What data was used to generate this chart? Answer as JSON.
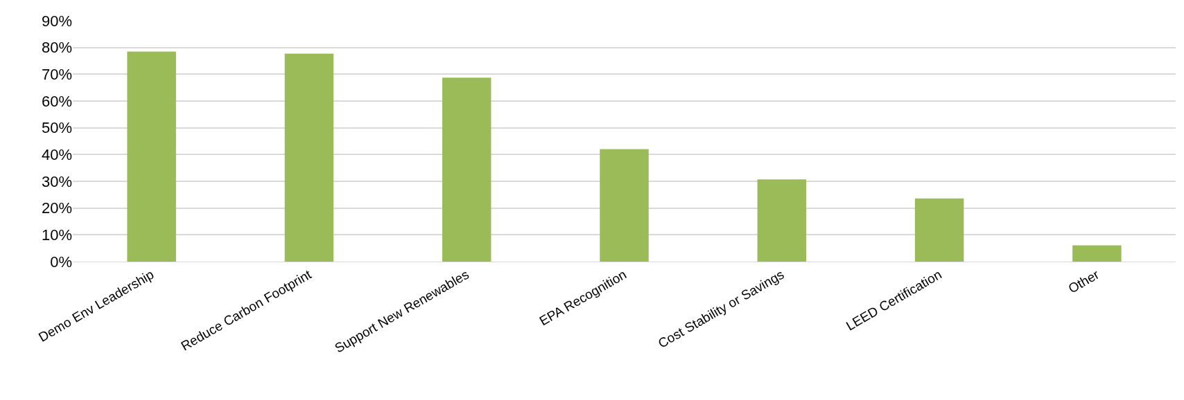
{
  "chart_data": {
    "type": "bar",
    "categories": [
      "Demo Env Leadership",
      "Reduce Carbon Footprint",
      "Support New Renewables",
      "EPA Recognition",
      "Cost Stability or Savings",
      "LEED Certification",
      "Other"
    ],
    "values": [
      0.785,
      0.777,
      0.687,
      0.42,
      0.307,
      0.236,
      0.061
    ],
    "color": "#9bbb59",
    "ylim": [
      0,
      0.9
    ],
    "yticks": [
      {
        "value": 0,
        "label": "0%"
      },
      {
        "value": 0.1,
        "label": "10%"
      },
      {
        "value": 0.2,
        "label": "20%"
      },
      {
        "value": 0.3,
        "label": "30%"
      },
      {
        "value": 0.4,
        "label": "40%"
      },
      {
        "value": 0.5,
        "label": "50%"
      },
      {
        "value": 0.6,
        "label": "60%"
      },
      {
        "value": 0.7,
        "label": "70%"
      },
      {
        "value": 0.8,
        "label": "80%"
      },
      {
        "value": 0.9,
        "label": "90%"
      }
    ],
    "grid": "y"
  }
}
